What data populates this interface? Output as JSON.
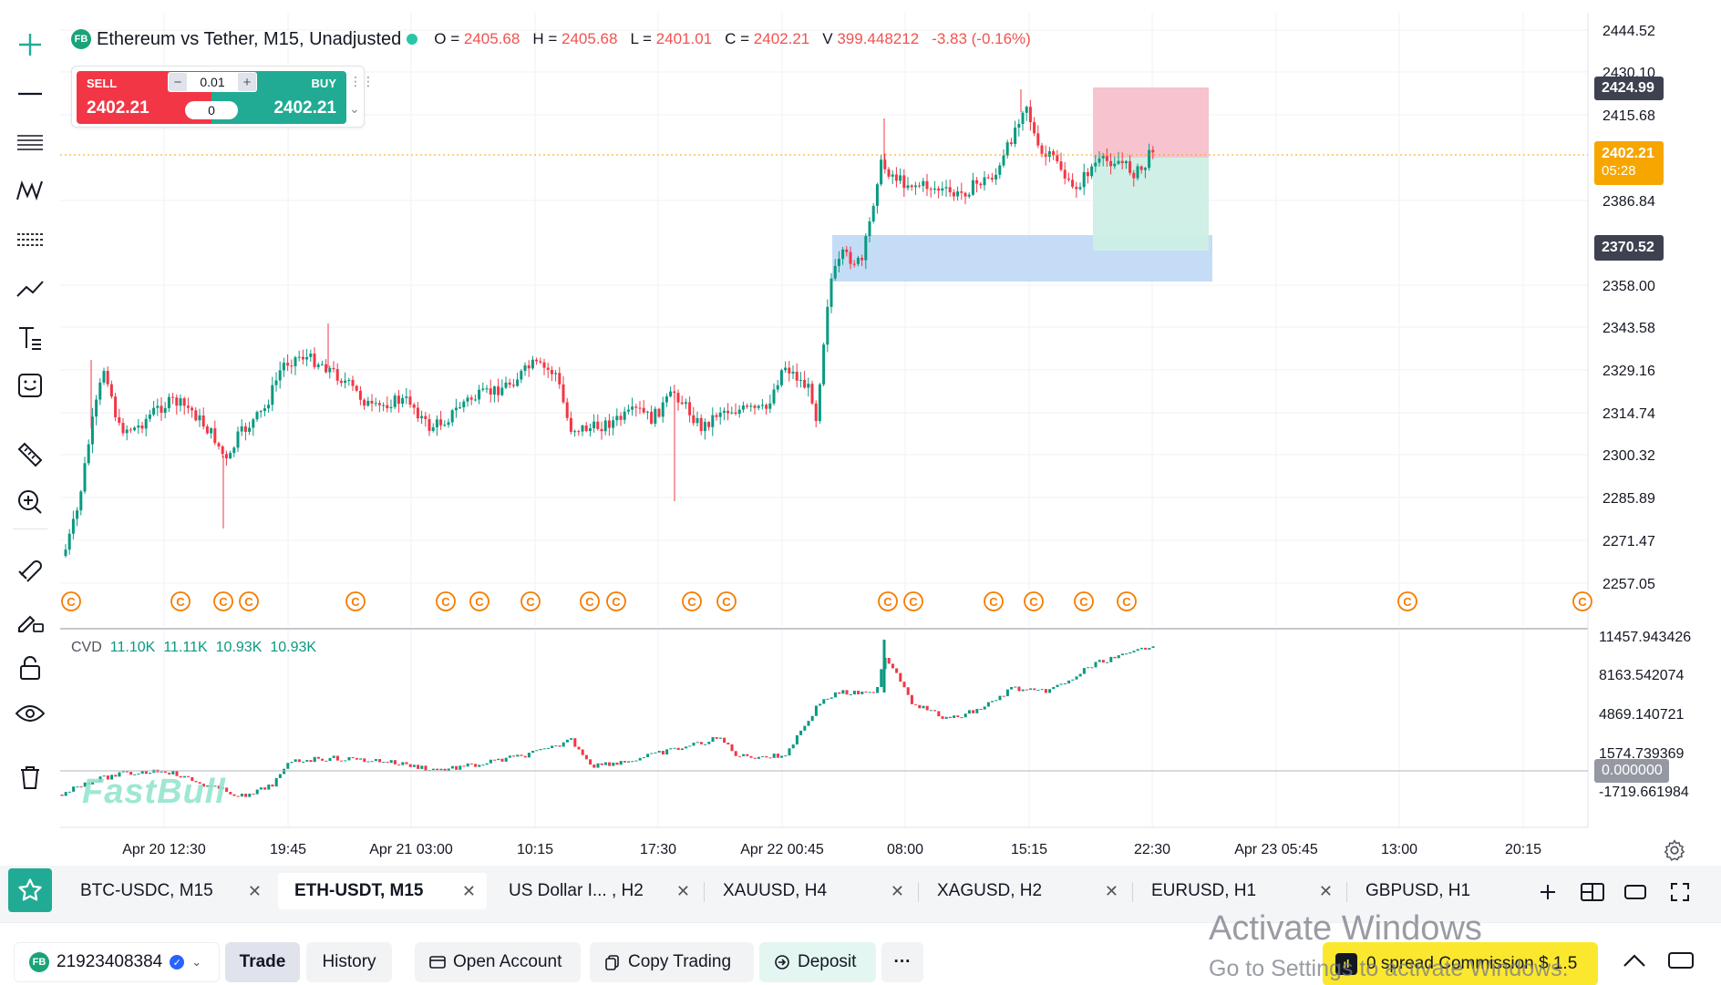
{
  "symbol": {
    "logo": "FB",
    "title": "Ethereum vs Tether, M15, Unadjusted",
    "open_label": "O =",
    "open": "2405.68",
    "high_label": "H =",
    "high": "2405.68",
    "low_label": "L =",
    "low": "2401.01",
    "close_label": "C =",
    "close": "2402.21",
    "volume_label": "V",
    "volume": "399.448212",
    "change": "-3.83 (-0.16%)"
  },
  "trade_widget": {
    "sell_label": "SELL",
    "sell_price": "2402.21",
    "buy_label": "BUY",
    "buy_price": "2402.21",
    "quantity": "0.01",
    "spread": "0",
    "minus": "−",
    "plus": "+",
    "drag": "⋮⋮",
    "chevron": "⌄"
  },
  "cvd": {
    "name": "CVD",
    "values": [
      "11.10K",
      "11.11K",
      "10.93K",
      "10.93K"
    ]
  },
  "watermark": "FastBull",
  "price_axis": [
    "2444.52",
    "2430.10",
    "2415.68",
    "2386.84",
    "2358.00",
    "2343.58",
    "2329.16",
    "2314.74",
    "2300.32",
    "2285.89",
    "2271.47",
    "2257.05"
  ],
  "price_tags": {
    "upper": "2424.99",
    "current": "2402.21",
    "countdown": "05:28",
    "lower": "2370.52"
  },
  "cvd_axis": [
    "11457.943426",
    "8163.542074",
    "4869.140721",
    "1574.739369",
    "0.000000",
    "-1719.661984"
  ],
  "time_axis": [
    "Apr 20 12:30",
    "19:45",
    "Apr 21 03:00",
    "10:15",
    "17:30",
    "Apr 22 00:45",
    "08:00",
    "15:15",
    "22:30",
    "Apr 23 05:45",
    "13:00",
    "20:15"
  ],
  "event_marker": "C",
  "left_tools": [
    "crosshair-icon",
    "horizontal-line-icon",
    "fib-retracement-icon",
    "pattern-icon",
    "parallel-channel-icon",
    "trend-line-icon",
    "text-tool-icon",
    "emoji-icon",
    "ruler-icon",
    "zoom-in-icon",
    "magnet-icon",
    "lock-draw-icon",
    "lock-icon",
    "eye-icon",
    "trash-icon"
  ],
  "tabs": [
    {
      "label": "BTC-USDC, M15",
      "active": false
    },
    {
      "label": "ETH-USDT, M15",
      "active": true
    },
    {
      "label": "US Dollar I... , H2",
      "active": false
    },
    {
      "label": "XAUUSD, H4",
      "active": false
    },
    {
      "label": "XAGUSD, H2",
      "active": false
    },
    {
      "label": "EURUSD, H1",
      "active": false
    },
    {
      "label": "GBPUSD, H1",
      "active": false
    }
  ],
  "tab_close": "✕",
  "bottom": {
    "account_logo": "FB",
    "account": "21923408384",
    "trade": "Trade",
    "history": "History",
    "open_account": "Open Account",
    "copy_trading": "Copy Trading",
    "deposit": "Deposit",
    "more": "···",
    "promo": "0 spread Commission $ 1.5"
  },
  "os_overlay": {
    "line1": "Activate Windows",
    "line2": "Go to Settings to activate Windows."
  },
  "colors": {
    "up": "#089981",
    "down": "#f23645",
    "accent": "#22ab94",
    "current": "#f7a600"
  }
}
